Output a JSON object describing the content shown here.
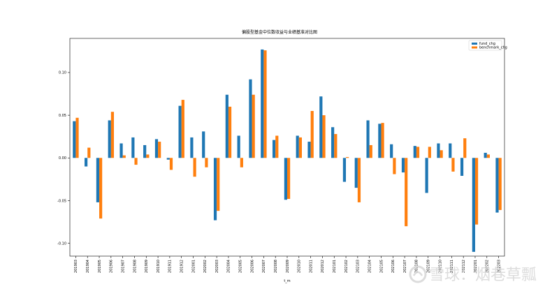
{
  "chart_data": {
    "type": "bar",
    "title": "偏股型基金中位数収益与业绩基准对比图",
    "xlabel": "t_m",
    "ylabel": "",
    "ylim": [
      -0.115,
      0.14
    ],
    "yticks": [
      0.1,
      0.05,
      0.0,
      -0.05,
      -0.1
    ],
    "ytick_labels": [
      "0.10",
      "0.05",
      "0.00",
      "-0.05",
      "-0.10"
    ],
    "grid": false,
    "legend_position": "top-right",
    "categories": [
      "201903",
      "201904",
      "201905",
      "201906",
      "201907",
      "201908",
      "201909",
      "201910",
      "201911",
      "201912",
      "202001",
      "202002",
      "202003",
      "202004",
      "202005",
      "202006",
      "202007",
      "202008",
      "202009",
      "202010",
      "202011",
      "202012",
      "202101",
      "202102",
      "202103",
      "202104",
      "202105",
      "202106",
      "202107",
      "202108",
      "202109",
      "202110",
      "202111",
      "202112",
      "202201",
      "202202",
      "202203"
    ],
    "series": [
      {
        "name": "fund_chg",
        "color": "#1f77b4",
        "values": [
          0.043,
          -0.01,
          -0.052,
          0.044,
          0.017,
          0.024,
          0.015,
          0.022,
          -0.002,
          0.061,
          0.024,
          0.031,
          -0.073,
          0.074,
          0.026,
          0.092,
          0.127,
          0.021,
          -0.049,
          0.026,
          0.019,
          0.072,
          0.036,
          -0.028,
          -0.035,
          0.044,
          0.04,
          0.016,
          -0.017,
          0.014,
          -0.041,
          0.017,
          0.017,
          -0.021,
          -0.11,
          0.006,
          -0.064
        ]
      },
      {
        "name": "benchmark_chg",
        "color": "#ff7f0e",
        "values": [
          0.047,
          0.012,
          -0.071,
          0.054,
          0.003,
          -0.008,
          0.004,
          0.019,
          -0.014,
          0.068,
          -0.022,
          -0.011,
          -0.062,
          0.06,
          -0.011,
          0.074,
          0.126,
          0.026,
          -0.048,
          0.024,
          0.055,
          0.05,
          0.028,
          0.001,
          -0.052,
          0.015,
          0.041,
          -0.019,
          -0.08,
          0.013,
          0.013,
          0.009,
          -0.016,
          0.023,
          -0.078,
          0.004,
          -0.061
        ]
      }
    ]
  },
  "watermark": {
    "text": "雪球：烟巷草瓢",
    "icon": "snowball-logo-icon"
  }
}
